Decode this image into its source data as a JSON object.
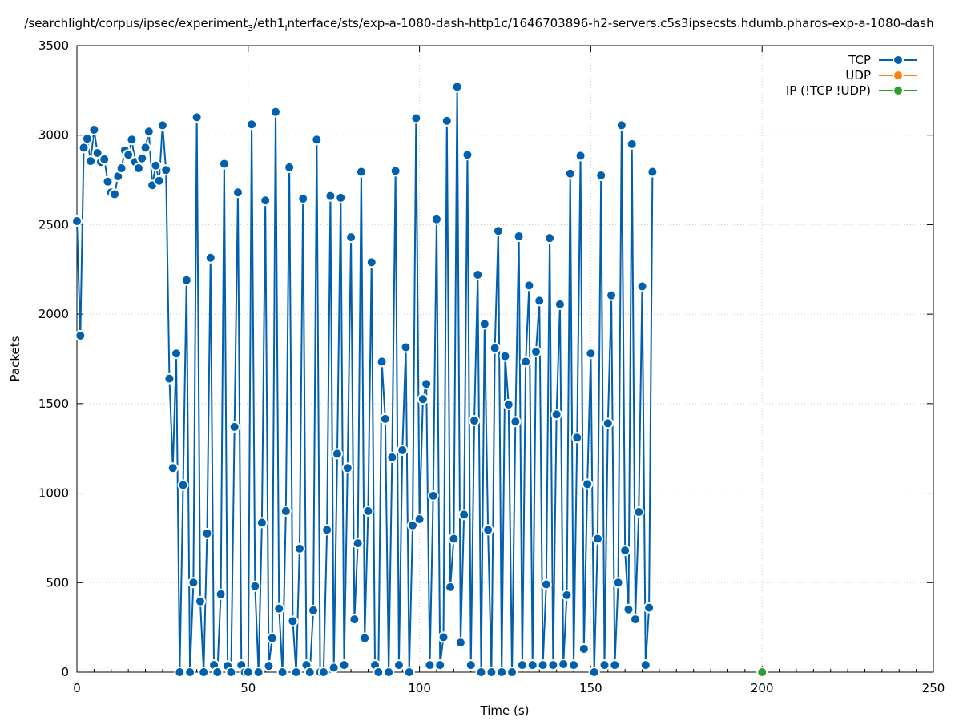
{
  "chart_data": {
    "type": "line",
    "title": "/searchlight/corpus/ipsec/experiment",
    "title_sub": "3",
    "title_mid": "/eth1",
    "title_sub2": "i",
    "title_rest": "nterface/sts/exp-a-1080-dash-http1c/1646703896-h2-servers.c5s3ipsecsts.hdumb.pharos-exp-a-1080-dash",
    "xlabel": "Time (s)",
    "ylabel": "Packets",
    "xlim": [
      0,
      250
    ],
    "ylim": [
      0,
      3500
    ],
    "xticks": [
      "0",
      "50",
      "100",
      "150",
      "200",
      "250"
    ],
    "yticks": [
      "0",
      "500",
      "1000",
      "1500",
      "2000",
      "2500",
      "3000",
      "3500"
    ],
    "grid": true,
    "legend_position": "top-right",
    "series": [
      {
        "name": "TCP",
        "color": "#0060ad",
        "points": [
          [
            0,
            2520
          ],
          [
            1,
            1880
          ],
          [
            2,
            2930
          ],
          [
            3,
            2980
          ],
          [
            4,
            2855
          ],
          [
            5,
            3030
          ],
          [
            6,
            2900
          ],
          [
            7,
            2850
          ],
          [
            8,
            2865
          ],
          [
            9,
            2740
          ],
          [
            10,
            2680
          ],
          [
            11,
            2670
          ],
          [
            12,
            2770
          ],
          [
            13,
            2815
          ],
          [
            14,
            2915
          ],
          [
            15,
            2890
          ],
          [
            16,
            2975
          ],
          [
            17,
            2850
          ],
          [
            18,
            2815
          ],
          [
            19,
            2870
          ],
          [
            20,
            2930
          ],
          [
            21,
            3020
          ],
          [
            22,
            2720
          ],
          [
            23,
            2830
          ],
          [
            24,
            2745
          ],
          [
            25,
            3055
          ],
          [
            26,
            2805
          ],
          [
            27,
            1640
          ],
          [
            28,
            1140
          ],
          [
            29,
            1780
          ],
          [
            30,
            0
          ],
          [
            31,
            1045
          ],
          [
            32,
            2190
          ],
          [
            33,
            0
          ],
          [
            34,
            500
          ],
          [
            35,
            3100
          ],
          [
            36,
            395
          ],
          [
            37,
            0
          ],
          [
            38,
            775
          ],
          [
            39,
            2315
          ],
          [
            40,
            40
          ],
          [
            41,
            0
          ],
          [
            42,
            435
          ],
          [
            43,
            2840
          ],
          [
            44,
            35
          ],
          [
            45,
            0
          ],
          [
            46,
            1370
          ],
          [
            47,
            2680
          ],
          [
            48,
            40
          ],
          [
            49,
            0
          ],
          [
            50,
            0
          ],
          [
            51,
            3060
          ],
          [
            52,
            480
          ],
          [
            53,
            0
          ],
          [
            54,
            835
          ],
          [
            55,
            2635
          ],
          [
            56,
            35
          ],
          [
            57,
            190
          ],
          [
            58,
            3130
          ],
          [
            59,
            355
          ],
          [
            60,
            0
          ],
          [
            61,
            900
          ],
          [
            62,
            2820
          ],
          [
            63,
            285
          ],
          [
            64,
            0
          ],
          [
            65,
            690
          ],
          [
            66,
            2645
          ],
          [
            67,
            40
          ],
          [
            68,
            0
          ],
          [
            69,
            345
          ],
          [
            70,
            2975
          ],
          [
            71,
            0
          ],
          [
            72,
            0
          ],
          [
            73,
            795
          ],
          [
            74,
            2660
          ],
          [
            75,
            25
          ],
          [
            76,
            1220
          ],
          [
            77,
            2650
          ],
          [
            78,
            40
          ],
          [
            79,
            1140
          ],
          [
            80,
            2430
          ],
          [
            81,
            295
          ],
          [
            82,
            720
          ],
          [
            83,
            2795
          ],
          [
            84,
            190
          ],
          [
            85,
            900
          ],
          [
            86,
            2290
          ],
          [
            87,
            40
          ],
          [
            88,
            0
          ],
          [
            89,
            1735
          ],
          [
            90,
            1415
          ],
          [
            91,
            0
          ],
          [
            92,
            1200
          ],
          [
            93,
            2800
          ],
          [
            94,
            40
          ],
          [
            95,
            1240
          ],
          [
            96,
            1815
          ],
          [
            97,
            0
          ],
          [
            98,
            820
          ],
          [
            99,
            3095
          ],
          [
            100,
            855
          ],
          [
            101,
            1525
          ],
          [
            102,
            1610
          ],
          [
            103,
            40
          ],
          [
            104,
            985
          ],
          [
            105,
            2530
          ],
          [
            106,
            40
          ],
          [
            107,
            195
          ],
          [
            108,
            3080
          ],
          [
            109,
            475
          ],
          [
            110,
            745
          ],
          [
            111,
            3270
          ],
          [
            112,
            165
          ],
          [
            113,
            880
          ],
          [
            114,
            2890
          ],
          [
            115,
            40
          ],
          [
            116,
            1405
          ],
          [
            117,
            2220
          ],
          [
            118,
            0
          ],
          [
            119,
            1945
          ],
          [
            120,
            795
          ],
          [
            121,
            0
          ],
          [
            122,
            1810
          ],
          [
            123,
            2465
          ],
          [
            124,
            0
          ],
          [
            125,
            1765
          ],
          [
            126,
            1495
          ],
          [
            127,
            0
          ],
          [
            128,
            1400
          ],
          [
            129,
            2435
          ],
          [
            130,
            40
          ],
          [
            131,
            1735
          ],
          [
            132,
            2160
          ],
          [
            133,
            40
          ],
          [
            134,
            1790
          ],
          [
            135,
            2075
          ],
          [
            136,
            40
          ],
          [
            137,
            490
          ],
          [
            138,
            2425
          ],
          [
            139,
            40
          ],
          [
            140,
            1440
          ],
          [
            141,
            2055
          ],
          [
            142,
            45
          ],
          [
            143,
            430
          ],
          [
            144,
            2785
          ],
          [
            145,
            40
          ],
          [
            146,
            1310
          ],
          [
            147,
            2885
          ],
          [
            148,
            130
          ],
          [
            149,
            1050
          ],
          [
            150,
            1780
          ],
          [
            151,
            0
          ],
          [
            152,
            745
          ],
          [
            153,
            2775
          ],
          [
            154,
            40
          ],
          [
            155,
            1390
          ],
          [
            156,
            2105
          ],
          [
            157,
            40
          ],
          [
            158,
            500
          ],
          [
            159,
            3055
          ],
          [
            160,
            680
          ],
          [
            161,
            350
          ],
          [
            162,
            2950
          ],
          [
            163,
            295
          ],
          [
            164,
            895
          ],
          [
            165,
            2155
          ],
          [
            166,
            40
          ],
          [
            167,
            360
          ],
          [
            168,
            2795
          ]
        ]
      },
      {
        "name": "UDP",
        "color": "#ff7f0e",
        "points": []
      },
      {
        "name": "IP (!TCP  !UDP)",
        "color": "#2ca02c",
        "points": [
          [
            200,
            0
          ]
        ]
      }
    ]
  }
}
